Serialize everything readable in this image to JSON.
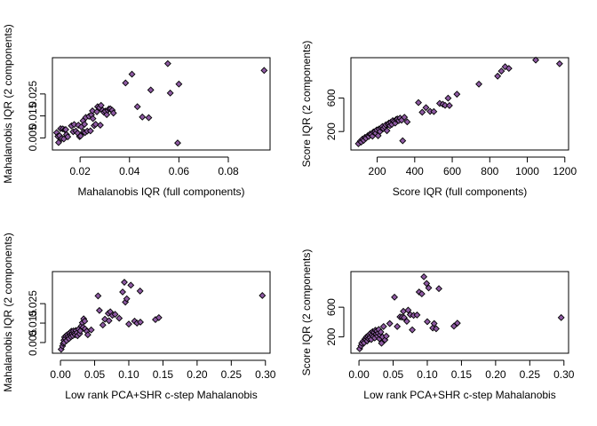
{
  "colors": {
    "marker_fill": "#8e5aa3",
    "marker_edge": "#000000",
    "background": "#ffffff"
  },
  "chart_data": [
    {
      "type": "scatter",
      "marker": "diamond",
      "xlabel": "Mahalanobis IQR (full components)",
      "ylabel": "Mahalanobis IQR (2 components)",
      "xlim": [
        0.0088,
        0.0969
      ],
      "ylim": [
        -0.0005,
        0.0415
      ],
      "xticks": [
        0.02,
        0.04,
        0.06,
        0.08
      ],
      "xtick_labels": [
        "0.02",
        "0.04",
        "0.06",
        "0.08"
      ],
      "yticks": [
        0.005,
        0.015,
        0.025
      ],
      "ytick_labels": [
        "0.005",
        "0.015",
        "0.025"
      ],
      "points": [
        [
          0.0105,
          0.0074
        ],
        [
          0.011,
          0.0057
        ],
        [
          0.0113,
          0.0029
        ],
        [
          0.0117,
          0.006
        ],
        [
          0.0121,
          0.0092
        ],
        [
          0.0125,
          0.0047
        ],
        [
          0.013,
          0.0091
        ],
        [
          0.0134,
          0.0045
        ],
        [
          0.0138,
          0.0087
        ],
        [
          0.0142,
          0.0088
        ],
        [
          0.0145,
          0.0065
        ],
        [
          0.015,
          0.0055
        ],
        [
          0.0165,
          0.0105
        ],
        [
          0.0172,
          0.0078
        ],
        [
          0.0176,
          0.0111
        ],
        [
          0.0183,
          0.0081
        ],
        [
          0.019,
          0.0072
        ],
        [
          0.0193,
          0.0108
        ],
        [
          0.0198,
          0.0056
        ],
        [
          0.0202,
          0.0059
        ],
        [
          0.0205,
          0.01
        ],
        [
          0.0212,
          0.0128
        ],
        [
          0.0214,
          0.0077
        ],
        [
          0.0218,
          0.0112
        ],
        [
          0.022,
          0.0074
        ],
        [
          0.0223,
          0.0143
        ],
        [
          0.0229,
          0.0081
        ],
        [
          0.0236,
          0.0148
        ],
        [
          0.0242,
          0.0082
        ],
        [
          0.0246,
          0.0155
        ],
        [
          0.025,
          0.0173
        ],
        [
          0.0252,
          0.0138
        ],
        [
          0.0257,
          0.0106
        ],
        [
          0.0263,
          0.0112
        ],
        [
          0.0268,
          0.0169
        ],
        [
          0.0271,
          0.0192
        ],
        [
          0.0278,
          0.0188
        ],
        [
          0.0282,
          0.0108
        ],
        [
          0.0285,
          0.0198
        ],
        [
          0.0291,
          0.0176
        ],
        [
          0.0296,
          0.0167
        ],
        [
          0.0302,
          0.0172
        ],
        [
          0.0308,
          0.0156
        ],
        [
          0.0312,
          0.0176
        ],
        [
          0.0317,
          0.0182
        ],
        [
          0.0323,
          0.0182
        ],
        [
          0.033,
          0.0176
        ],
        [
          0.0335,
          0.0163
        ],
        [
          0.0384,
          0.03
        ],
        [
          0.041,
          0.034
        ],
        [
          0.0432,
          0.0192
        ],
        [
          0.0452,
          0.0145
        ],
        [
          0.0478,
          0.0142
        ],
        [
          0.0486,
          0.0268
        ],
        [
          0.0555,
          0.0388
        ],
        [
          0.0565,
          0.0254
        ],
        [
          0.0595,
          0.0027
        ],
        [
          0.06,
          0.0295
        ],
        [
          0.0945,
          0.0357
        ]
      ]
    },
    {
      "type": "scatter",
      "marker": "diamond",
      "xlabel": "Score IQR (full components)",
      "ylabel": "Score IQR (2 components)",
      "xlim": [
        60,
        1220
      ],
      "ylim": [
        -20,
        1080
      ],
      "xticks": [
        200,
        400,
        600,
        800,
        1000,
        1200
      ],
      "xtick_labels": [
        "200",
        "400",
        "600",
        "800",
        "1000",
        "1200"
      ],
      "yticks": [
        200,
        600
      ],
      "ytick_labels": [
        "200",
        "600"
      ],
      "points": [
        [
          100,
          55
        ],
        [
          110,
          85
        ],
        [
          115,
          75
        ],
        [
          122,
          110
        ],
        [
          128,
          95
        ],
        [
          135,
          130
        ],
        [
          140,
          120
        ],
        [
          150,
          150
        ],
        [
          155,
          140
        ],
        [
          162,
          170
        ],
        [
          168,
          165
        ],
        [
          175,
          145
        ],
        [
          180,
          195
        ],
        [
          188,
          200
        ],
        [
          192,
          180
        ],
        [
          198,
          220
        ],
        [
          205,
          150
        ],
        [
          210,
          230
        ],
        [
          215,
          200
        ],
        [
          222,
          245
        ],
        [
          228,
          260
        ],
        [
          233,
          235
        ],
        [
          240,
          255
        ],
        [
          246,
          280
        ],
        [
          252,
          210
        ],
        [
          258,
          285
        ],
        [
          262,
          300
        ],
        [
          268,
          270
        ],
        [
          272,
          310
        ],
        [
          278,
          285
        ],
        [
          283,
          330
        ],
        [
          290,
          320
        ],
        [
          296,
          300
        ],
        [
          302,
          345
        ],
        [
          308,
          350
        ],
        [
          315,
          330
        ],
        [
          322,
          360
        ],
        [
          330,
          335
        ],
        [
          336,
          90
        ],
        [
          345,
          370
        ],
        [
          360,
          315
        ],
        [
          420,
          545
        ],
        [
          440,
          430
        ],
        [
          460,
          485
        ],
        [
          482,
          440
        ],
        [
          502,
          438
        ],
        [
          533,
          535
        ],
        [
          550,
          525
        ],
        [
          562,
          512
        ],
        [
          578,
          598
        ],
        [
          585,
          510
        ],
        [
          625,
          645
        ],
        [
          742,
          765
        ],
        [
          842,
          860
        ],
        [
          862,
          920
        ],
        [
          882,
          972
        ],
        [
          902,
          952
        ],
        [
          1045,
          1052
        ],
        [
          1172,
          1008
        ]
      ]
    },
    {
      "type": "scatter",
      "marker": "diamond",
      "xlabel": "Low rank PCA+SHR c-step Mahalanobis",
      "ylabel": "Mahalanobis IQR (2 components)",
      "xlim": [
        -0.0118,
        0.3068
      ],
      "ylim": [
        -0.0005,
        0.0415
      ],
      "xticks": [
        0.0,
        0.05,
        0.1,
        0.15,
        0.2,
        0.25,
        0.3
      ],
      "xtick_labels": [
        "0.00",
        "0.05",
        "0.10",
        "0.15",
        "0.20",
        "0.25",
        "0.30"
      ],
      "yticks": [
        0.005,
        0.015,
        0.025
      ],
      "ytick_labels": [
        "0.005",
        "0.015",
        "0.025"
      ],
      "points": [
        [
          0.001,
          0.0015
        ],
        [
          0.003,
          0.0032
        ],
        [
          0.004,
          0.0045
        ],
        [
          0.005,
          0.0062
        ],
        [
          0.0055,
          0.005
        ],
        [
          0.006,
          0.0078
        ],
        [
          0.007,
          0.007
        ],
        [
          0.008,
          0.0085
        ],
        [
          0.009,
          0.006
        ],
        [
          0.01,
          0.009
        ],
        [
          0.0115,
          0.0082
        ],
        [
          0.0125,
          0.007
        ],
        [
          0.0135,
          0.01
        ],
        [
          0.0145,
          0.0088
        ],
        [
          0.0155,
          0.008
        ],
        [
          0.016,
          0.0108
        ],
        [
          0.017,
          0.0095
        ],
        [
          0.018,
          0.0085
        ],
        [
          0.019,
          0.011
        ],
        [
          0.0205,
          0.0098
        ],
        [
          0.0215,
          0.009
        ],
        [
          0.0225,
          0.0112
        ],
        [
          0.024,
          0.01
        ],
        [
          0.025,
          0.0085
        ],
        [
          0.0265,
          0.0118
        ],
        [
          0.028,
          0.0095
        ],
        [
          0.029,
          0.011
        ],
        [
          0.0305,
          0.0135
        ],
        [
          0.032,
          0.0152
        ],
        [
          0.033,
          0.0128
        ],
        [
          0.034,
          0.0172
        ],
        [
          0.0355,
          0.016
        ],
        [
          0.036,
          0.012
        ],
        [
          0.0385,
          0.0108
        ],
        [
          0.04,
          0.009
        ],
        [
          0.045,
          0.0115
        ],
        [
          0.055,
          0.029
        ],
        [
          0.057,
          0.0215
        ],
        [
          0.062,
          0.014
        ],
        [
          0.065,
          0.017
        ],
        [
          0.07,
          0.02
        ],
        [
          0.071,
          0.0162
        ],
        [
          0.073,
          0.0208
        ],
        [
          0.076,
          0.019
        ],
        [
          0.08,
          0.0195
        ],
        [
          0.086,
          0.0175
        ],
        [
          0.091,
          0.031
        ],
        [
          0.0935,
          0.036
        ],
        [
          0.095,
          0.0258
        ],
        [
          0.097,
          0.0275
        ],
        [
          0.1,
          0.0145
        ],
        [
          0.103,
          0.0345
        ],
        [
          0.1085,
          0.016
        ],
        [
          0.112,
          0.015
        ],
        [
          0.1165,
          0.0315
        ],
        [
          0.117,
          0.0155
        ],
        [
          0.139,
          0.0168
        ],
        [
          0.144,
          0.0178
        ],
        [
          0.2955,
          0.0292
        ]
      ]
    },
    {
      "type": "scatter",
      "marker": "diamond",
      "xlabel": "Low rank PCA+SHR c-step Mahalanobis",
      "ylabel": "Score IQR (2 components)",
      "xlim": [
        -0.0118,
        0.3068
      ],
      "ylim": [
        -20,
        1080
      ],
      "xticks": [
        0.0,
        0.05,
        0.1,
        0.15,
        0.2,
        0.25,
        0.3
      ],
      "xtick_labels": [
        "0.00",
        "0.05",
        "0.10",
        "0.15",
        "0.20",
        "0.25",
        "0.30"
      ],
      "yticks": [
        200,
        600
      ],
      "ytick_labels": [
        "200",
        "600"
      ],
      "points": [
        [
          0.001,
          40
        ],
        [
          0.003,
          80
        ],
        [
          0.004,
          115
        ],
        [
          0.006,
          140
        ],
        [
          0.0075,
          120
        ],
        [
          0.009,
          175
        ],
        [
          0.01,
          160
        ],
        [
          0.011,
          200
        ],
        [
          0.012,
          145
        ],
        [
          0.013,
          210
        ],
        [
          0.014,
          175
        ],
        [
          0.015,
          230
        ],
        [
          0.016,
          190
        ],
        [
          0.017,
          250
        ],
        [
          0.018,
          165
        ],
        [
          0.019,
          225
        ],
        [
          0.02,
          270
        ],
        [
          0.021,
          205
        ],
        [
          0.022,
          260
        ],
        [
          0.023,
          185
        ],
        [
          0.024,
          290
        ],
        [
          0.025,
          240
        ],
        [
          0.026,
          280
        ],
        [
          0.027,
          210
        ],
        [
          0.028,
          250
        ],
        [
          0.029,
          300
        ],
        [
          0.03,
          175
        ],
        [
          0.031,
          225
        ],
        [
          0.032,
          265
        ],
        [
          0.033,
          115
        ],
        [
          0.0345,
          200
        ],
        [
          0.036,
          340
        ],
        [
          0.038,
          160
        ],
        [
          0.04,
          210
        ],
        [
          0.045,
          380
        ],
        [
          0.052,
          735
        ],
        [
          0.056,
          340
        ],
        [
          0.06,
          470
        ],
        [
          0.063,
          465
        ],
        [
          0.065,
          545
        ],
        [
          0.066,
          460
        ],
        [
          0.07,
          410
        ],
        [
          0.072,
          560
        ],
        [
          0.075,
          500
        ],
        [
          0.078,
          295
        ],
        [
          0.08,
          490
        ],
        [
          0.085,
          495
        ],
        [
          0.088,
          805
        ],
        [
          0.092,
          780
        ],
        [
          0.095,
          1010
        ],
        [
          0.099,
          920
        ],
        [
          0.1,
          405
        ],
        [
          0.102,
          860
        ],
        [
          0.108,
          320
        ],
        [
          0.11,
          380
        ],
        [
          0.113,
          310
        ],
        [
          0.117,
          850
        ],
        [
          0.139,
          345
        ],
        [
          0.144,
          385
        ],
        [
          0.296,
          460
        ]
      ]
    }
  ]
}
